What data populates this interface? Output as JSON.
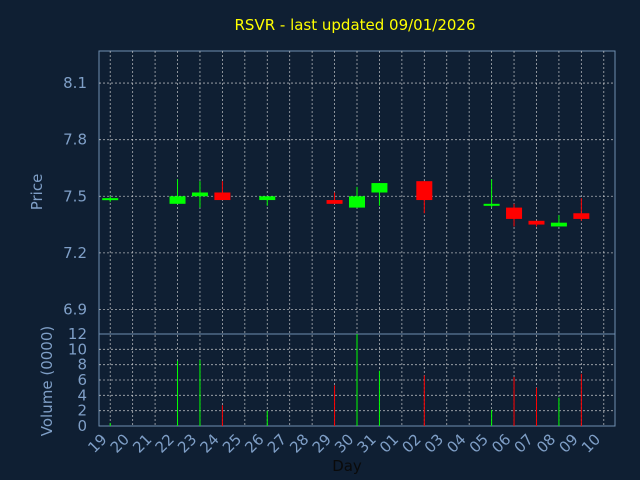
{
  "chart_data": {
    "type": "candlestick",
    "title": "RSVR - last updated 09/01/2026",
    "price_panel": {
      "ylabel": "Price",
      "ylim": [
        6.77,
        8.27
      ],
      "yticks": [
        "6.9",
        "7.2",
        "7.5",
        "7.8",
        "8.1"
      ],
      "ytick_values": [
        6.9,
        7.2,
        7.5,
        7.8,
        8.1
      ]
    },
    "volume_panel": {
      "ylabel": "Volume (0000)",
      "ylim": [
        0,
        12
      ],
      "yticks": [
        "0",
        "2",
        "4",
        "6",
        "8",
        "10",
        "12"
      ],
      "ytick_values": [
        0,
        2,
        4,
        6,
        8,
        10,
        12
      ]
    },
    "xlabel": "Day",
    "x_tick_labels": [
      "19",
      "20",
      "21",
      "22",
      "23",
      "24",
      "25",
      "26",
      "27",
      "28",
      "29",
      "30",
      "31",
      "01",
      "02",
      "03",
      "04",
      "05",
      "06",
      "07",
      "08",
      "09",
      "10"
    ],
    "grid": true,
    "colors": {
      "up": "#00ff00",
      "down": "#ff0000",
      "background": "#0f1f33",
      "title": "#ffff00",
      "axis_text": "#7f9fc7"
    },
    "candles": [
      {
        "day": "19",
        "open": 7.48,
        "high": 7.5,
        "low": 7.47,
        "close": 7.49,
        "volume": 0.4
      },
      {
        "day": "22",
        "open": 7.46,
        "high": 7.59,
        "low": 7.46,
        "close": 7.5,
        "volume": 8.5
      },
      {
        "day": "23",
        "open": 7.5,
        "high": 7.58,
        "low": 7.44,
        "close": 7.52,
        "volume": 8.6
      },
      {
        "day": "24",
        "open": 7.52,
        "high": 7.58,
        "low": 7.48,
        "close": 7.48,
        "volume": 2.7
      },
      {
        "day": "26",
        "open": 7.48,
        "high": 7.5,
        "low": 7.45,
        "close": 7.5,
        "volume": 2.0
      },
      {
        "day": "29",
        "open": 7.48,
        "high": 7.52,
        "low": 7.46,
        "close": 7.46,
        "volume": 5.3
      },
      {
        "day": "30",
        "open": 7.44,
        "high": 7.55,
        "low": 7.44,
        "close": 7.5,
        "volume": 12.0
      },
      {
        "day": "31",
        "open": 7.52,
        "high": 7.57,
        "low": 7.45,
        "close": 7.57,
        "volume": 7.2
      },
      {
        "day": "02",
        "open": 7.58,
        "high": 7.58,
        "low": 7.41,
        "close": 7.48,
        "volume": 6.6
      },
      {
        "day": "05",
        "open": 7.45,
        "high": 7.59,
        "low": 7.44,
        "close": 7.46,
        "volume": 2.1
      },
      {
        "day": "06",
        "open": 7.44,
        "high": 7.46,
        "low": 7.34,
        "close": 7.38,
        "volume": 6.4
      },
      {
        "day": "07",
        "open": 7.37,
        "high": 7.37,
        "low": 7.34,
        "close": 7.35,
        "volume": 5.0
      },
      {
        "day": "08",
        "open": 7.34,
        "high": 7.4,
        "low": 7.34,
        "close": 7.36,
        "volume": 3.7
      },
      {
        "day": "09",
        "open": 7.41,
        "high": 7.49,
        "low": 7.37,
        "close": 7.38,
        "volume": 6.8
      }
    ]
  }
}
